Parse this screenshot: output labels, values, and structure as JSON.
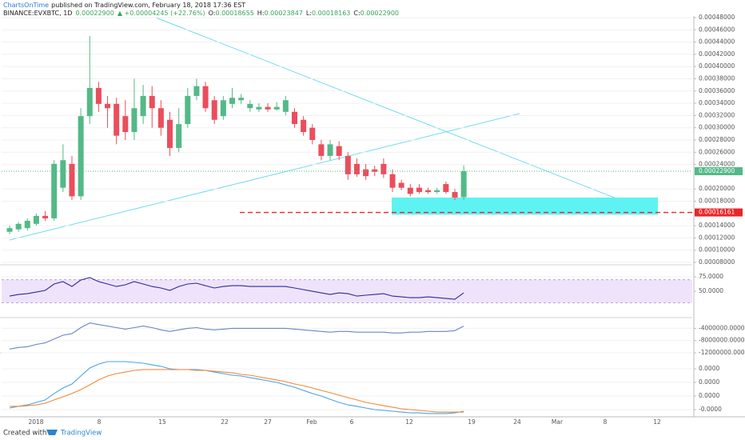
{
  "header": {
    "author": "ChartsOnTime",
    "published": "published on TradingView.com, February 18, 2018 17:36 EST",
    "symbol": "BINANCE:EVXBTC, 1D",
    "last": "0.00022900",
    "change": "▲ +0.00004245 (+22.76%)",
    "ohlc": [
      {
        "label": "O:",
        "value": "0.00018655"
      },
      {
        "label": "H:",
        "value": "0.00023847"
      },
      {
        "label": "L:",
        "value": "0.00018163"
      },
      {
        "label": "C:",
        "value": "0.00022900"
      }
    ]
  },
  "chart_data": [
    {
      "type": "candlestick",
      "up_color": "#53b987",
      "down_color": "#eb4d5c",
      "open": [
        0.00013,
        0.000134,
        0.000136,
        0.000143,
        0.000156,
        0.000152,
        0.000202,
        0.000241,
        0.000188,
        0.000319,
        0.000365,
        0.000339,
        0.000339,
        0.000319,
        0.000293,
        0.000319,
        0.000352,
        0.000332,
        0.000313,
        0.000267,
        0.000306,
        0.000352,
        0.000368,
        0.000345,
        0.000319,
        0.000339,
        0.000345,
        0.000332,
        0.00033,
        0.000334,
        0.00033,
        0.000326,
        0.000326,
        0.000313,
        0.0003,
        0.000273,
        0.000254,
        0.00027,
        0.000254,
        0.000241,
        0.000232,
        0.000232,
        0.000241,
        0.000224,
        0.00021,
        0.000202,
        0.000202,
        0.000198,
        0.000195,
        0.000208,
        0.000195,
        0.00018655
      ],
      "high": [
        0.00014,
        0.000146,
        0.000152,
        0.00016,
        0.000164,
        0.000247,
        0.000273,
        0.000254,
        0.000332,
        0.00045,
        0.000375,
        0.000352,
        0.000349,
        0.000345,
        0.00038,
        0.00037,
        0.000368,
        0.000345,
        0.000326,
        0.000332,
        0.000365,
        0.00038,
        0.000375,
        0.000352,
        0.000352,
        0.000365,
        0.000355,
        0.000345,
        0.00034,
        0.00034,
        0.000342,
        0.000352,
        0.000332,
        0.000319,
        0.000306,
        0.00028,
        0.00028,
        0.000278,
        0.00026,
        0.00025,
        0.000241,
        0.000238,
        0.00025,
        0.000232,
        0.000215,
        0.000208,
        0.000208,
        0.000202,
        0.000202,
        0.000212,
        0.0002,
        0.00023847
      ],
      "low": [
        0.000126,
        0.00013,
        0.000132,
        0.00014,
        0.000148,
        0.000148,
        0.000195,
        0.000182,
        0.000182,
        0.000306,
        0.000326,
        0.0003,
        0.000273,
        0.00028,
        0.00028,
        0.000306,
        0.0003,
        0.000287,
        0.000254,
        0.00026,
        0.0003,
        0.000345,
        0.000326,
        0.000306,
        0.000313,
        0.000332,
        0.000339,
        0.000326,
        0.000326,
        0.000326,
        0.000328,
        0.00032,
        0.0003,
        0.000287,
        0.000273,
        0.000247,
        0.000247,
        0.000247,
        0.000215,
        0.00022,
        0.000215,
        0.000221,
        0.000218,
        0.000195,
        0.000198,
        0.000188,
        0.000192,
        0.000192,
        0.000192,
        0.000192,
        0.000182,
        0.00018163
      ],
      "close": [
        0.000136,
        0.000143,
        0.000148,
        0.000156,
        0.000152,
        0.000241,
        0.000247,
        0.000188,
        0.000319,
        0.000365,
        0.000339,
        0.000332,
        0.000287,
        0.000293,
        0.000332,
        0.000352,
        0.000332,
        0.0003,
        0.000267,
        0.000306,
        0.000352,
        0.000368,
        0.000332,
        0.000313,
        0.000345,
        0.000349,
        0.000349,
        0.000339,
        0.000334,
        0.00033,
        0.000334,
        0.000345,
        0.000306,
        0.000293,
        0.00028,
        0.000254,
        0.000273,
        0.000254,
        0.000224,
        0.000224,
        0.000221,
        0.000228,
        0.000224,
        0.000202,
        0.000202,
        0.000192,
        0.000195,
        0.000195,
        0.000198,
        0.000195,
        0.000186,
        0.000229
      ],
      "ylim": [
        8e-05,
        0.00048
      ],
      "yticks": [
        {
          "value": 8e-05,
          "label": "0.00008000"
        },
        {
          "value": 0.0001,
          "label": "0.00010000"
        },
        {
          "value": 0.00012,
          "label": "0.00012000"
        },
        {
          "value": 0.00014,
          "label": "0.00014000"
        },
        {
          "value": 0.00018,
          "label": "0.00018000"
        },
        {
          "value": 0.0002,
          "label": "0.00020000"
        },
        {
          "value": 0.00024,
          "label": "0.00024000"
        },
        {
          "value": 0.00026,
          "label": "0.00026000"
        },
        {
          "value": 0.00028,
          "label": "0.00028000"
        },
        {
          "value": 0.0003,
          "label": "0.00030000"
        },
        {
          "value": 0.00032,
          "label": "0.00032000"
        },
        {
          "value": 0.00034,
          "label": "0.00034000"
        },
        {
          "value": 0.00036,
          "label": "0.00036000"
        },
        {
          "value": 0.00038,
          "label": "0.00038000"
        },
        {
          "value": 0.0004,
          "label": "0.00040000"
        },
        {
          "value": 0.00042,
          "label": "0.00042000"
        },
        {
          "value": 0.00044,
          "label": "0.00044000"
        },
        {
          "value": 0.00046,
          "label": "0.00046000"
        },
        {
          "value": 0.00048,
          "label": "0.00048000"
        }
      ],
      "last_price": {
        "value": 0.000229,
        "label": "0.00022900",
        "color": "#53b987"
      },
      "support": {
        "value": 0.00016161,
        "label": "0.00016161",
        "color": "#e8262b"
      },
      "zone": {
        "values": [
          0.000158,
          0.000186
        ],
        "color": "#5ff2f2"
      }
    },
    {
      "type": "line",
      "band": [
        30,
        70
      ],
      "series": [
        {
          "color": "#2e2a9c",
          "values": [
            41.7,
            44.4,
            45.8,
            48.6,
            51.4,
            62.5,
            66.7,
            58.3,
            69.4,
            73.6,
            66.7,
            62.5,
            58.3,
            61.1,
            66.7,
            62.5,
            58.3,
            55.6,
            51.4,
            58.3,
            62.5,
            63.9,
            59.7,
            55.6,
            58.3,
            59.7,
            59.7,
            58.3,
            58.3,
            58.3,
            58.3,
            58.3,
            55.6,
            52.8,
            50,
            47.2,
            44.4,
            47.2,
            45.8,
            41.7,
            43.1,
            44.4,
            45.8,
            41.7,
            40.3,
            38.9,
            38.9,
            40.3,
            38.9,
            37.5,
            36.1,
            47.2
          ]
        }
      ],
      "ylim": [
        3,
        93
      ],
      "yticks": [
        {
          "value": 75,
          "label": "75.0000"
        },
        {
          "value": 50,
          "label": "50.0000"
        }
      ]
    },
    {
      "type": "line",
      "series": [
        {
          "color": "#6a86c4",
          "values": [
            -10750000,
            -10250000,
            -10000000,
            -9250000,
            -8750000,
            -7500000,
            -6250000,
            -5750000,
            -3750000,
            -2250000,
            -2750000,
            -3250000,
            -3750000,
            -4250000,
            -3750000,
            -3250000,
            -3750000,
            -4500000,
            -5000000,
            -4500000,
            -4000000,
            -3750000,
            -4250000,
            -4500000,
            -4250000,
            -4000000,
            -4000000,
            -4000000,
            -4000000,
            -4000000,
            -4000000,
            -4000000,
            -4250000,
            -4500000,
            -4750000,
            -5000000,
            -5250000,
            -5000000,
            -5000000,
            -5250000,
            -5250000,
            -5250000,
            -5250000,
            -5500000,
            -5500000,
            -5250000,
            -5250000,
            -5000000,
            -5000000,
            -5000000,
            -4750000,
            -3250000
          ]
        }
      ],
      "ylim": [
        -12250000,
        -750000
      ],
      "yticks": [
        {
          "value": -4000000,
          "label": "-4000000.0000"
        },
        {
          "value": -8000000,
          "label": "-8000000.0000"
        },
        {
          "value": -12000000,
          "label": "-12000000.0000"
        }
      ]
    },
    {
      "type": "line",
      "series": [
        {
          "color": "#4aa3e8",
          "values": [
            -8.8e-06,
            -7.6e-06,
            -6.5e-06,
            -4.7e-06,
            -2.9e-06,
            1.8e-06,
            5.9e-06,
            8.8e-06,
            1.47e-05,
            2.06e-05,
            2.35e-05,
            2.53e-05,
            2.53e-05,
            2.53e-05,
            2.47e-05,
            2.41e-05,
            2.29e-05,
            2.18e-05,
            2e-05,
            1.94e-05,
            1.94e-05,
            1.94e-05,
            1.88e-05,
            1.76e-05,
            1.65e-05,
            1.53e-05,
            1.47e-05,
            1.35e-05,
            1.24e-05,
            1.12e-05,
            1e-05,
            8.2e-06,
            6.5e-06,
            4.1e-06,
            1.8e-06,
            0,
            -2.4e-06,
            -4.7e-06,
            -6.5e-06,
            -7.6e-06,
            -8.8e-06,
            -1e-05,
            -1.06e-05,
            -1.12e-05,
            -1.18e-05,
            -1.24e-05,
            -1.24e-05,
            -1.29e-05,
            -1.29e-05,
            -1.29e-05,
            -1.24e-05,
            -1.12e-05
          ]
        },
        {
          "color": "#f0883a",
          "values": [
            -7.6e-06,
            -7.6e-06,
            -7.1e-06,
            -6.5e-06,
            -5.3e-06,
            -2.9e-06,
            -6e-07,
            1.8e-06,
            4.7e-06,
            8.2e-06,
            1.18e-05,
            1.47e-05,
            1.65e-05,
            1.76e-05,
            1.88e-05,
            1.94e-05,
            1.94e-05,
            1.94e-05,
            1.94e-05,
            1.94e-05,
            1.94e-05,
            1.88e-05,
            1.88e-05,
            1.82e-05,
            1.76e-05,
            1.71e-05,
            1.59e-05,
            1.53e-05,
            1.41e-05,
            1.29e-05,
            1.18e-05,
            1.06e-05,
            8.8e-06,
            7.6e-06,
            5.9e-06,
            4.1e-06,
            2.4e-06,
            6e-07,
            -1.2e-06,
            -2.9e-06,
            -4.7e-06,
            -5.9e-06,
            -7.1e-06,
            -8.2e-06,
            -9.4e-06,
            -1e-05,
            -1.06e-05,
            -1.12e-05,
            -1.18e-05,
            -1.18e-05,
            -1.18e-05,
            -1.18e-05
          ]
        }
      ],
      "ylim": [
        -1.47e-05,
        3e-05
      ],
      "yticks": [
        {
          "value": 2e-05,
          "label": "0.0000"
        },
        {
          "value": 1e-05,
          "label": "0.0000"
        },
        {
          "value": 0,
          "label": "0.0000"
        },
        {
          "value": -1e-05,
          "label": "-0.0000"
        }
      ]
    }
  ],
  "time_axis": [
    "2018",
    "8",
    "15",
    "22",
    "27",
    "Feb",
    "6",
    "12",
    "19",
    "24",
    "Mar",
    "8",
    "12"
  ],
  "footer": {
    "created": "Created with",
    "brand": "TradingView"
  }
}
